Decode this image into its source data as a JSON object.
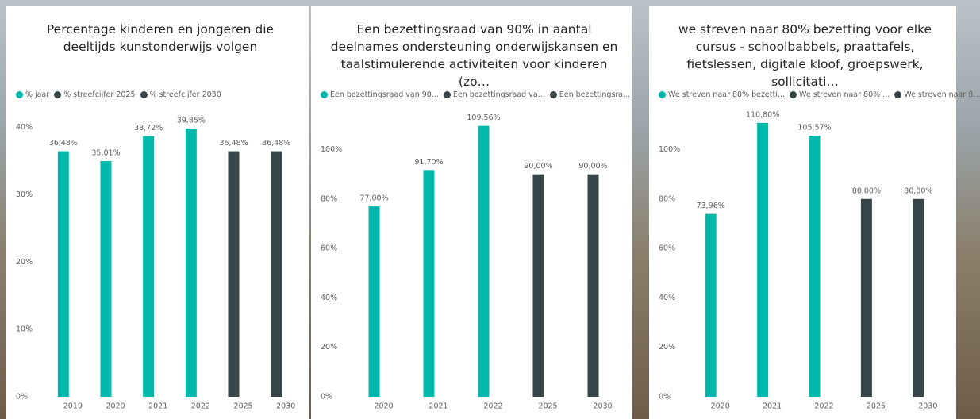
{
  "chart_data": [
    {
      "type": "bar",
      "title": "Percentage kinderen en jongeren die deeltijds kunstonderwijs volgen",
      "categories": [
        "2019",
        "2020",
        "2021",
        "2022",
        "2025",
        "2030"
      ],
      "series": [
        {
          "name": "% jaar",
          "color": "#01B8AA",
          "values": [
            36.48,
            35.01,
            38.72,
            39.85,
            null,
            null
          ],
          "value_labels": [
            "36,48%",
            "35,01%",
            "38,72%",
            "39,85%",
            null,
            null
          ]
        },
        {
          "name": "% streefcijfer 2025",
          "color": "#374649",
          "values": [
            null,
            null,
            null,
            null,
            36.48,
            null
          ],
          "value_labels": [
            null,
            null,
            null,
            null,
            "36,48%",
            null
          ]
        },
        {
          "name": "% streefcijfer 2030",
          "color": "#374649",
          "values": [
            null,
            null,
            null,
            null,
            null,
            36.48
          ],
          "value_labels": [
            null,
            null,
            null,
            null,
            null,
            "36,48%"
          ]
        }
      ],
      "ylim": [
        0,
        41.5
      ],
      "yticks": [
        {
          "value": 0,
          "label": "0%"
        },
        {
          "value": 10,
          "label": "10%"
        },
        {
          "value": 20,
          "label": "20%"
        },
        {
          "value": 30,
          "label": "30%"
        },
        {
          "value": 40,
          "label": "40%"
        }
      ],
      "grid": false
    },
    {
      "type": "bar",
      "title": "Een bezettingsraad van 90% in aantal deelnames ondersteuning onderwijskansen en taalstimulerende activiteiten voor kinderen (zo…",
      "categories": [
        "2020",
        "2021",
        "2022",
        "2025",
        "2030"
      ],
      "series": [
        {
          "name": "Een bezettingsraad van 90...",
          "color": "#01B8AA",
          "values": [
            77.0,
            91.7,
            109.56,
            null,
            null
          ],
          "value_labels": [
            "77,00%",
            "91,70%",
            "109,56%",
            null,
            null
          ]
        },
        {
          "name": "Een bezettingsraad va...",
          "color": "#374649",
          "values": [
            null,
            null,
            null,
            90.0,
            null
          ],
          "value_labels": [
            null,
            null,
            null,
            "90,00%",
            null
          ]
        },
        {
          "name": "Een bezettingsra...",
          "color": "#374649",
          "values": [
            null,
            null,
            null,
            null,
            90.0
          ],
          "value_labels": [
            null,
            null,
            null,
            null,
            "90,00%"
          ]
        }
      ],
      "ylim": [
        0,
        113
      ],
      "yticks": [
        {
          "value": 0,
          "label": "0%"
        },
        {
          "value": 20,
          "label": "20%"
        },
        {
          "value": 40,
          "label": "40%"
        },
        {
          "value": 60,
          "label": "60%"
        },
        {
          "value": 80,
          "label": "80%"
        },
        {
          "value": 100,
          "label": "100%"
        }
      ],
      "grid": false
    },
    {
      "type": "bar",
      "title": "we streven naar 80% bezetting voor elke cursus - schoolbabbels, praattafels, fietslessen, digitale kloof, groepswerk, sollicitati…",
      "categories": [
        "2020",
        "2021",
        "2022",
        "2025",
        "2030"
      ],
      "series": [
        {
          "name": "We streven naar 80% bezetti...",
          "color": "#01B8AA",
          "values": [
            73.96,
            110.8,
            105.57,
            null,
            null
          ],
          "value_labels": [
            "73,96%",
            "110,80%",
            "105,57%",
            null,
            null
          ]
        },
        {
          "name": "We streven naar 80% ...",
          "color": "#374649",
          "values": [
            null,
            null,
            null,
            80.0,
            null
          ],
          "value_labels": [
            null,
            null,
            null,
            "80,00%",
            null
          ]
        },
        {
          "name": "We streven naar 8...",
          "color": "#374649",
          "values": [
            null,
            null,
            null,
            null,
            80.0
          ],
          "value_labels": [
            null,
            null,
            null,
            null,
            "80,00%"
          ]
        }
      ],
      "ylim": [
        0,
        113
      ],
      "yticks": [
        {
          "value": 0,
          "label": "0%"
        },
        {
          "value": 20,
          "label": "20%"
        },
        {
          "value": 40,
          "label": "40%"
        },
        {
          "value": 60,
          "label": "60%"
        },
        {
          "value": 80,
          "label": "80%"
        },
        {
          "value": 100,
          "label": "100%"
        }
      ],
      "grid": false
    }
  ]
}
